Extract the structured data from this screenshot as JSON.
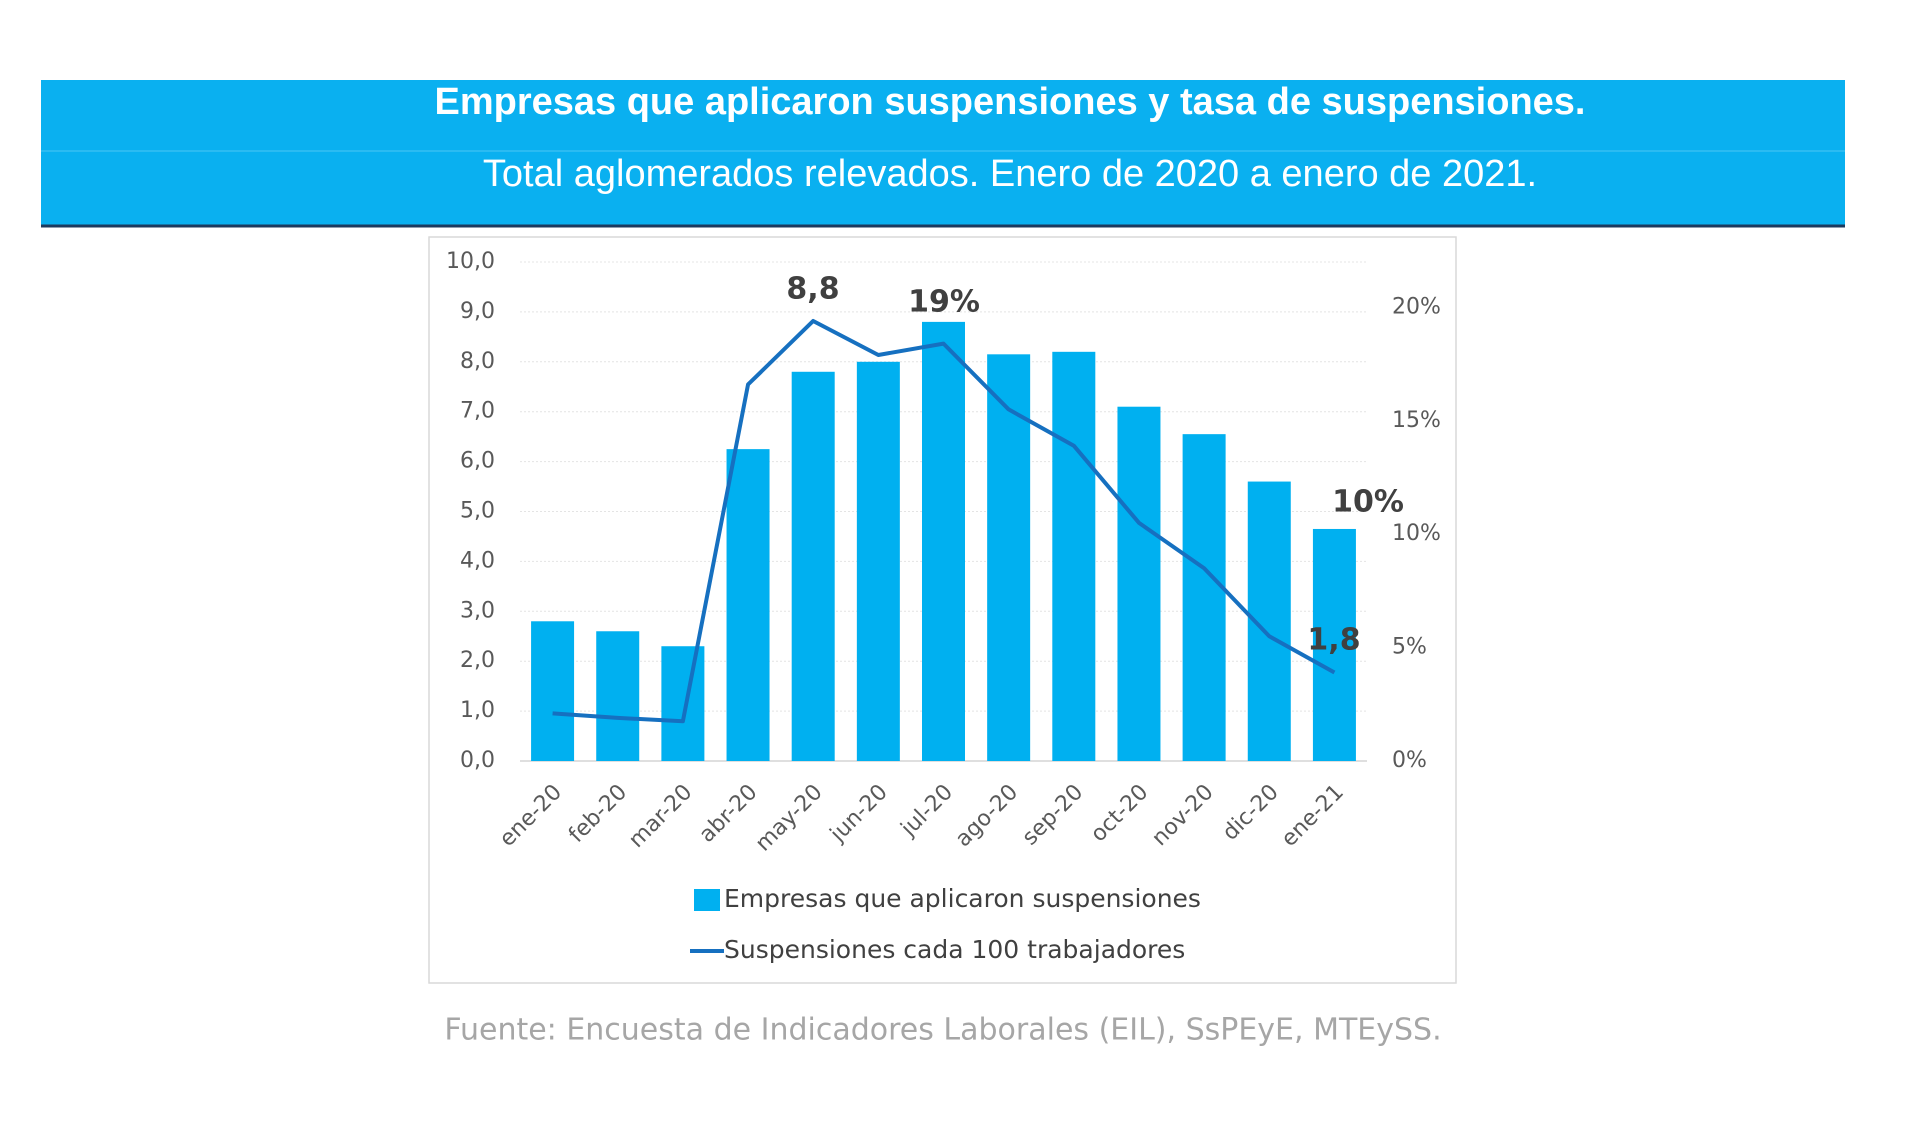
{
  "header": {
    "title": "Empresas que aplicaron suspensiones y tasa de suspensiones.",
    "subtitle": "Total aglomerados relevados. Enero de 2020 a enero de 2021."
  },
  "chart_data": {
    "type": "bar_line",
    "categories": [
      "ene-20",
      "feb-20",
      "mar-20",
      "abr-20",
      "may-20",
      "jun-20",
      "jul-20",
      "ago-20",
      "sep-20",
      "oct-20",
      "nov-20",
      "dic-20",
      "ene-21"
    ],
    "series": [
      {
        "name": "Empresas que aplicaron suspensiones",
        "type": "bar",
        "color": "#00b0f0",
        "values": [
          2.8,
          2.6,
          2.3,
          6.25,
          7.8,
          8.0,
          8.8,
          8.15,
          8.2,
          7.1,
          6.55,
          5.6,
          4.65
        ]
      },
      {
        "name": "Suspensiones cada 100 trabajadores",
        "type": "line",
        "axis": "y2",
        "color": "#1670c0",
        "values": [
          2.1,
          1.9,
          1.75,
          16.6,
          19.4,
          17.9,
          18.4,
          15.5,
          13.9,
          10.5,
          8.5,
          5.5,
          3.9
        ]
      }
    ],
    "ylim": [
      0,
      10
    ],
    "yticks": [
      {
        "value": 0,
        "label": "0,0"
      },
      {
        "value": 1,
        "label": "1,0"
      },
      {
        "value": 2,
        "label": "2,0"
      },
      {
        "value": 3,
        "label": "3,0"
      },
      {
        "value": 4,
        "label": "4,0"
      },
      {
        "value": 5,
        "label": "5,0"
      },
      {
        "value": 6,
        "label": "6,0"
      },
      {
        "value": 7,
        "label": "7,0"
      },
      {
        "value": 8,
        "label": "8,0"
      },
      {
        "value": 9,
        "label": "9,0"
      },
      {
        "value": 10,
        "label": "10,0"
      }
    ],
    "y2lim": [
      0,
      22
    ],
    "y2ticks": [
      {
        "value": 0,
        "label": "0%"
      },
      {
        "value": 5,
        "label": "5%"
      },
      {
        "value": 10,
        "label": "10%"
      },
      {
        "value": 15,
        "label": "15%"
      },
      {
        "value": 20,
        "label": "20%"
      }
    ],
    "grid": true,
    "annotations": [
      "8,8",
      "19%",
      "10%",
      "1,8"
    ],
    "source": "Fuente: Encuesta de Indicadores Laborales (EIL), SsPEyE, MTEySS."
  }
}
